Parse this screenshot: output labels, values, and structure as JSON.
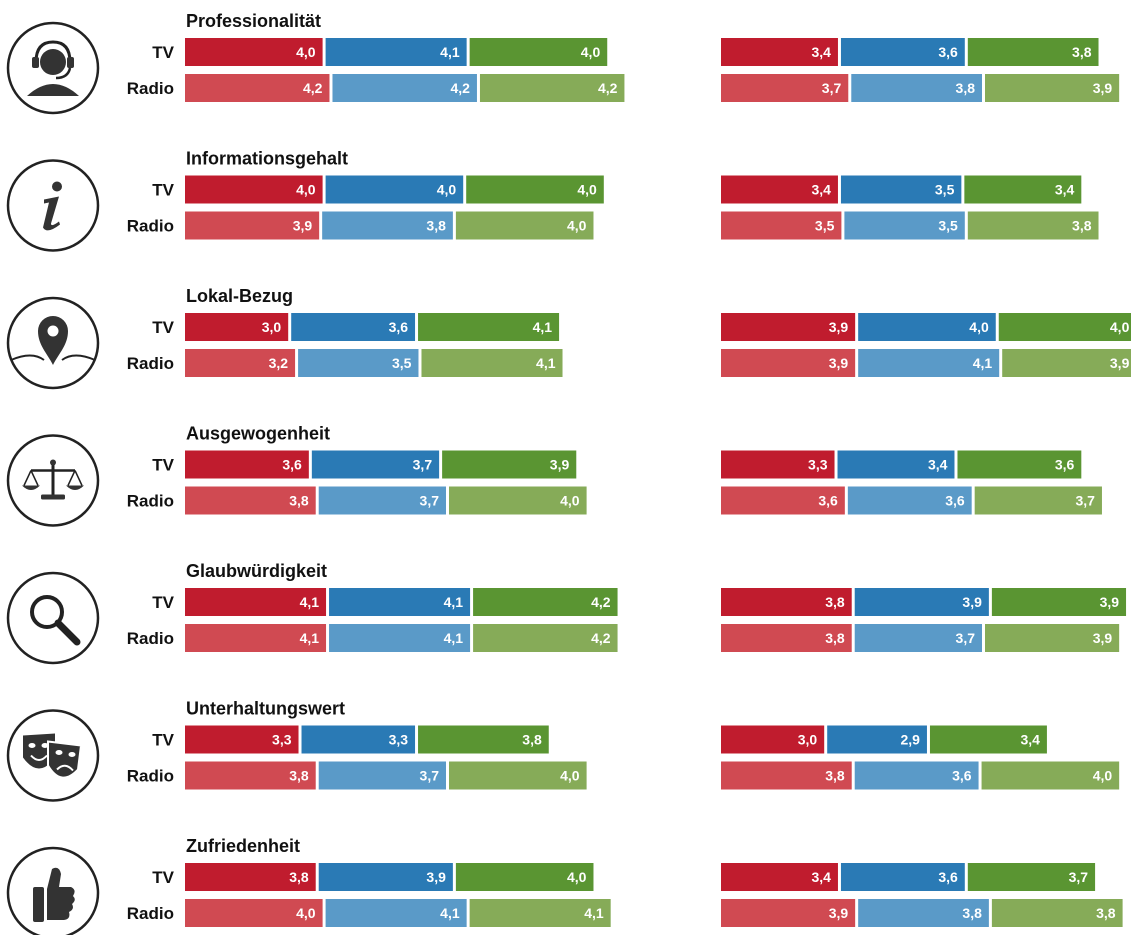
{
  "colors": {
    "series_strong": [
      "#c01c2e",
      "#2a7ab5",
      "#5a9532"
    ],
    "series_light": [
      "#d04a52",
      "#5a9ac8",
      "#86ab58"
    ],
    "text": "#111111",
    "icon_stroke": "#222222",
    "icon_fill": "#333333",
    "value_text": "#ffffff"
  },
  "chart_data": {
    "type": "bar",
    "orientation": "horizontal",
    "stacked": true,
    "row_labels": [
      "TV",
      "Radio"
    ],
    "data_labels_shown": true,
    "legend": "none",
    "panels": [
      {
        "title": "Professionalität",
        "icon": "headset-icon",
        "left": {
          "TV": [
            4.0,
            4.1,
            4.0
          ],
          "Radio": [
            4.2,
            4.2,
            4.2
          ]
        },
        "right": {
          "TV": [
            3.4,
            3.6,
            3.8
          ],
          "Radio": [
            3.7,
            3.8,
            3.9
          ]
        }
      },
      {
        "title": "Informationsgehalt",
        "icon": "info-icon",
        "left": {
          "TV": [
            4.0,
            4.0,
            4.0
          ],
          "Radio": [
            3.9,
            3.8,
            4.0
          ]
        },
        "right": {
          "TV": [
            3.4,
            3.5,
            3.4
          ],
          "Radio": [
            3.5,
            3.5,
            3.8
          ]
        }
      },
      {
        "title": "Lokal-Bezug",
        "icon": "location-pin-icon",
        "left": {
          "TV": [
            3.0,
            3.6,
            4.1
          ],
          "Radio": [
            3.2,
            3.5,
            4.1
          ]
        },
        "right": {
          "TV": [
            3.9,
            4.0,
            4.0
          ],
          "Radio": [
            3.9,
            4.1,
            3.9
          ]
        }
      },
      {
        "title": "Ausgewogenheit",
        "icon": "scales-icon",
        "left": {
          "TV": [
            3.6,
            3.7,
            3.9
          ],
          "Radio": [
            3.8,
            3.7,
            4.0
          ]
        },
        "right": {
          "TV": [
            3.3,
            3.4,
            3.6
          ],
          "Radio": [
            3.6,
            3.6,
            3.7
          ]
        }
      },
      {
        "title": "Glaubwürdigkeit",
        "icon": "magnifier-icon",
        "left": {
          "TV": [
            4.1,
            4.1,
            4.2
          ],
          "Radio": [
            4.1,
            4.1,
            4.2
          ]
        },
        "right": {
          "TV": [
            3.8,
            3.9,
            3.9
          ],
          "Radio": [
            3.8,
            3.7,
            3.9
          ]
        }
      },
      {
        "title": "Unterhaltungswert",
        "icon": "theater-masks-icon",
        "left": {
          "TV": [
            3.3,
            3.3,
            3.8
          ],
          "Radio": [
            3.8,
            3.7,
            4.0
          ]
        },
        "right": {
          "TV": [
            3.0,
            2.9,
            3.4
          ],
          "Radio": [
            3.8,
            3.6,
            4.0
          ]
        }
      },
      {
        "title": "Zufriedenheit",
        "icon": "thumbs-up-icon",
        "left": {
          "TV": [
            3.8,
            3.9,
            4.0
          ],
          "Radio": [
            4.0,
            4.1,
            4.1
          ]
        },
        "right": {
          "TV": [
            3.4,
            3.6,
            3.7
          ],
          "Radio": [
            3.9,
            3.8,
            3.8
          ]
        }
      }
    ]
  }
}
